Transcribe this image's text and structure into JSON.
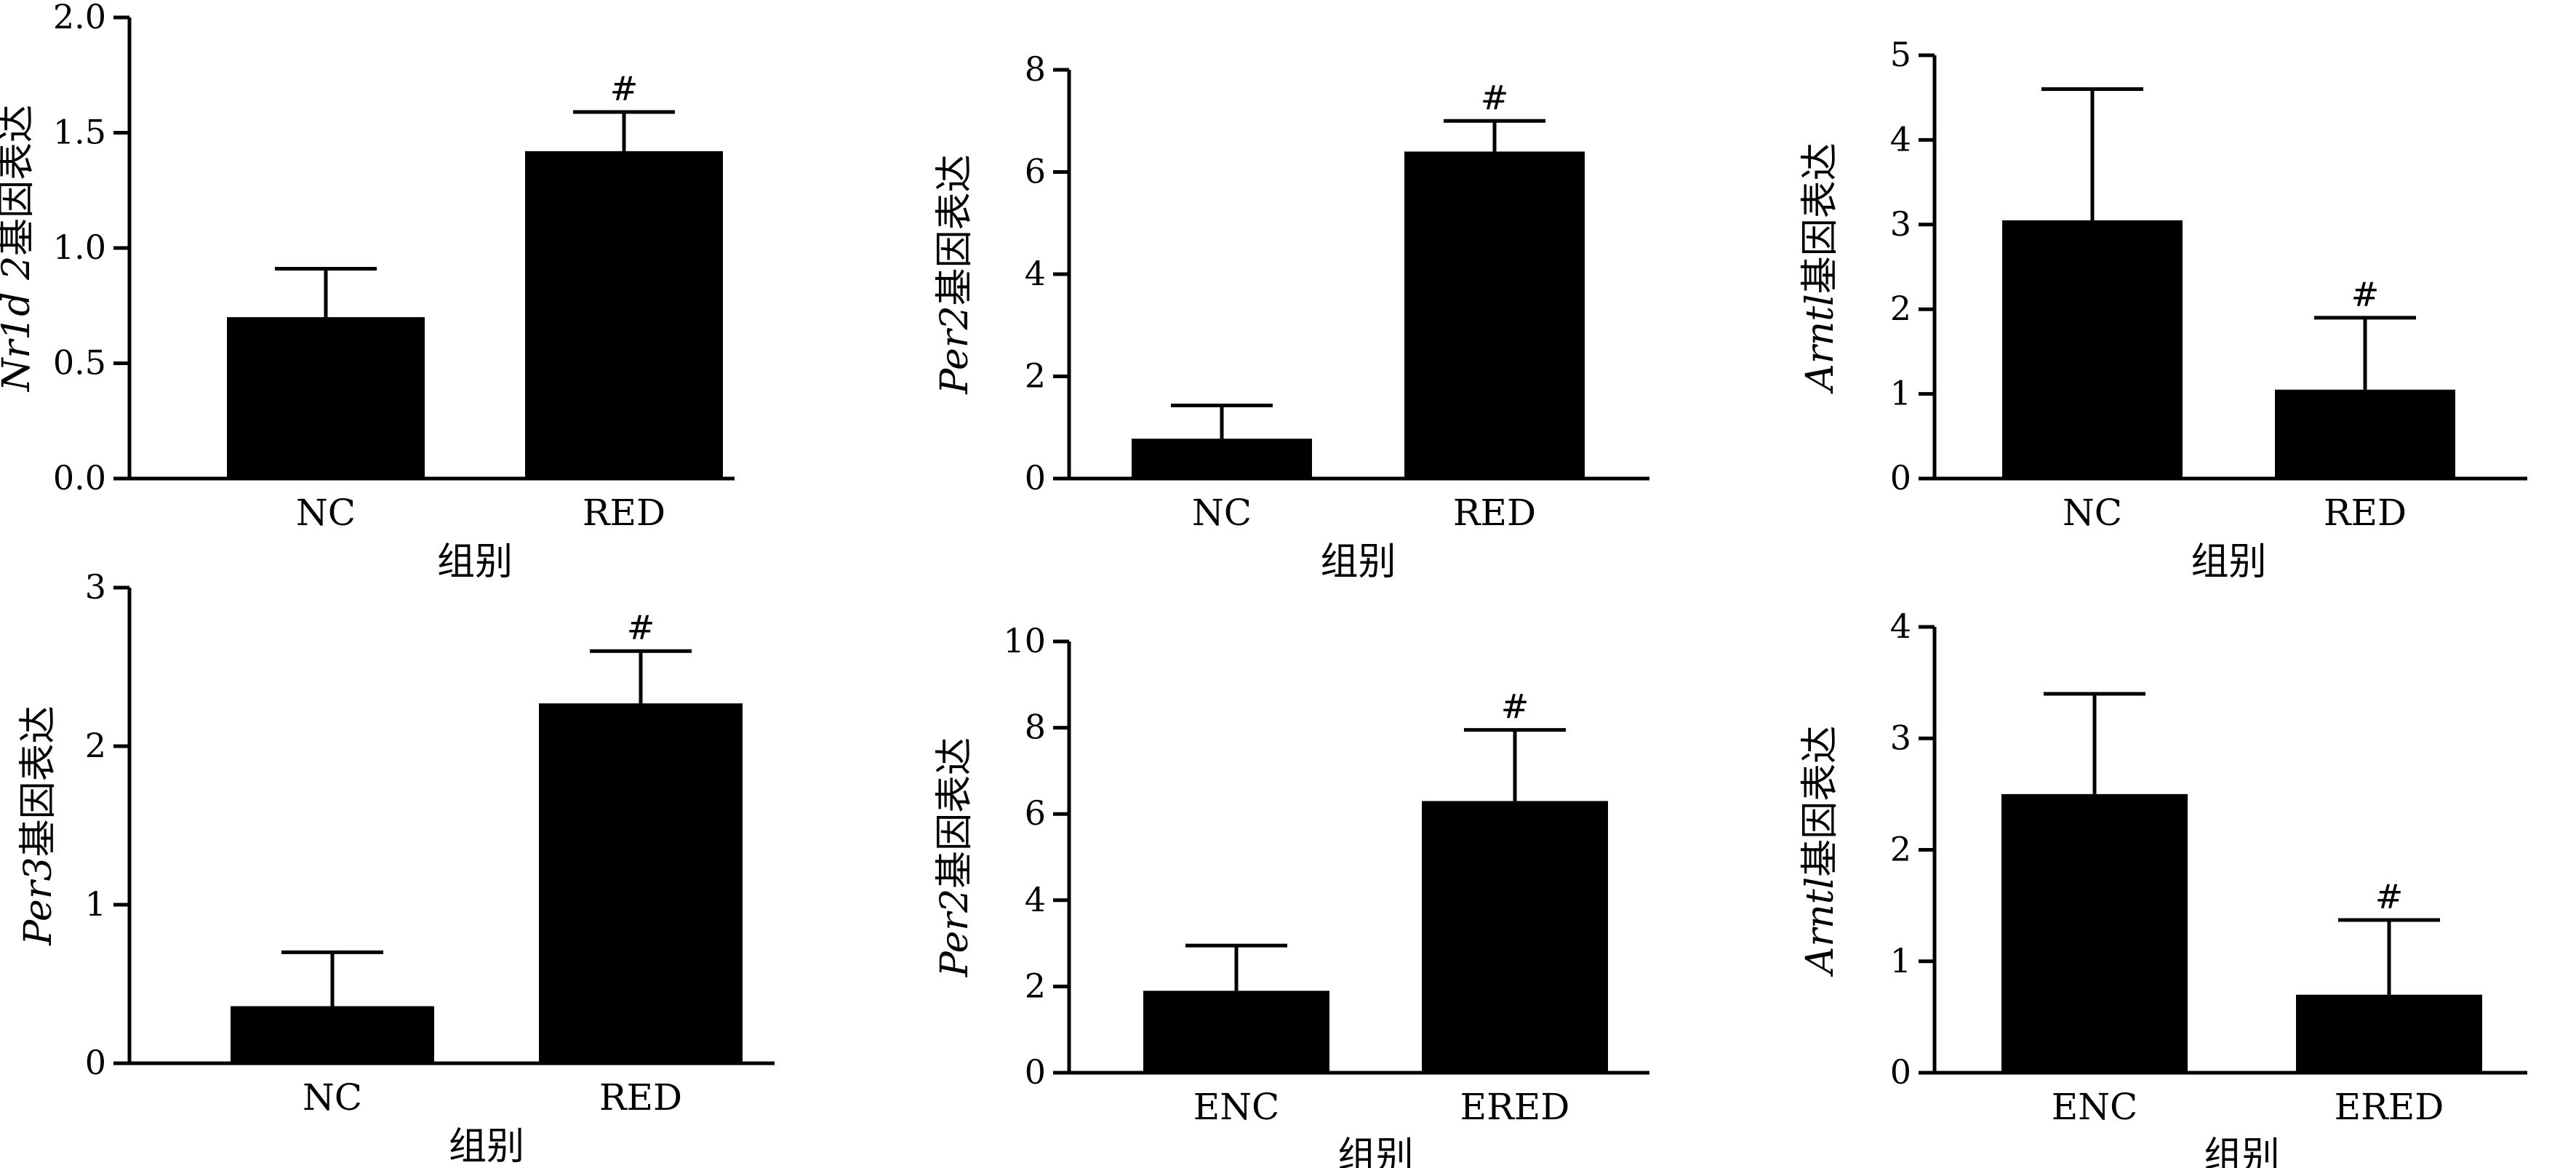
{
  "chart_data": [
    {
      "type": "bar",
      "categories": [
        "NC",
        "RED"
      ],
      "values": [
        0.7,
        1.42
      ],
      "errors": [
        0.21,
        0.17
      ],
      "annotations": [
        "",
        "#"
      ],
      "ylabel_italic": "Nr1d 2",
      "ylabel_suffix": "基因表达",
      "xlabel": "组别",
      "ylim": [
        0,
        2.0
      ],
      "yticks": [
        0,
        0.5,
        1.0,
        1.5,
        2.0
      ],
      "ytick_labels": [
        "0.0",
        "0.5",
        "1.0",
        "1.5",
        "2.0"
      ]
    },
    {
      "type": "bar",
      "categories": [
        "NC",
        "RED"
      ],
      "values": [
        0.78,
        6.4
      ],
      "errors": [
        0.65,
        0.6
      ],
      "annotations": [
        "",
        "#"
      ],
      "ylabel_italic": "Per2",
      "ylabel_suffix": "基因表达",
      "xlabel": "组别",
      "ylim": [
        0,
        8
      ],
      "yticks": [
        0,
        2,
        4,
        6,
        8
      ],
      "ytick_labels": [
        "0",
        "2",
        "4",
        "6",
        "8"
      ]
    },
    {
      "type": "bar",
      "categories": [
        "NC",
        "RED"
      ],
      "values": [
        3.05,
        1.05
      ],
      "errors": [
        1.55,
        0.85
      ],
      "annotations": [
        "",
        "#"
      ],
      "ylabel_italic": "Arntl",
      "ylabel_suffix": "基因表达",
      "xlabel": "组别",
      "ylim": [
        0,
        5
      ],
      "yticks": [
        0,
        1,
        2,
        3,
        4,
        5
      ],
      "ytick_labels": [
        "0",
        "1",
        "2",
        "3",
        "4",
        "5"
      ]
    },
    {
      "type": "bar",
      "categories": [
        "NC",
        "RED"
      ],
      "values": [
        0.36,
        2.27
      ],
      "errors": [
        0.34,
        0.33
      ],
      "annotations": [
        "",
        "#"
      ],
      "ylabel_italic": "Per3",
      "ylabel_suffix": "基因表达",
      "xlabel": "组别",
      "ylim": [
        0,
        3
      ],
      "yticks": [
        0,
        1,
        2,
        3
      ],
      "ytick_labels": [
        "0",
        "1",
        "2",
        "3"
      ]
    },
    {
      "type": "bar",
      "categories": [
        "ENC",
        "ERED"
      ],
      "values": [
        1.9,
        6.3
      ],
      "errors": [
        1.05,
        1.65
      ],
      "annotations": [
        "",
        "#"
      ],
      "ylabel_italic": "Per2",
      "ylabel_suffix": "基因表达",
      "xlabel": "组别",
      "ylim": [
        0,
        10
      ],
      "yticks": [
        0,
        2,
        4,
        6,
        8,
        10
      ],
      "ytick_labels": [
        "0",
        "2",
        "4",
        "6",
        "8",
        "10"
      ]
    },
    {
      "type": "bar",
      "categories": [
        "ENC",
        "ERED"
      ],
      "values": [
        2.5,
        0.7
      ],
      "errors": [
        0.9,
        0.67
      ],
      "annotations": [
        "",
        "#"
      ],
      "ylabel_italic": "Arntl",
      "ylabel_suffix": "基因表达",
      "xlabel": "组别",
      "ylim": [
        0,
        4
      ],
      "yticks": [
        0,
        1,
        2,
        3,
        4
      ],
      "ytick_labels": [
        "0",
        "1",
        "2",
        "3",
        "4"
      ]
    }
  ]
}
